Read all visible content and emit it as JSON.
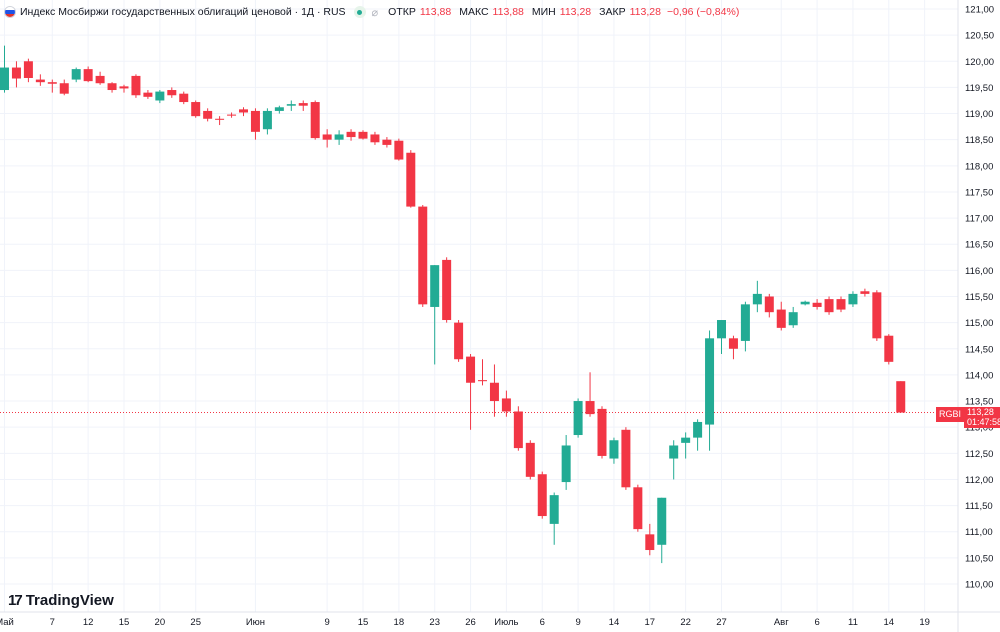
{
  "legend": {
    "title": "Индекс Мосбиржи государственных облигаций ценовой · 1Д · RUS",
    "open_label": "ОТКР",
    "open_value": "113,88",
    "high_label": "МАКС",
    "high_value": "113,88",
    "low_label": "МИН",
    "low_value": "113,28",
    "close_label": "ЗАКР",
    "close_value": "113,28",
    "change": "−0,96 (−0,84%)"
  },
  "logo": {
    "text": "TradingView"
  },
  "price_tag": {
    "symbol": "RGBI",
    "price": "113,28",
    "countdown": "01:47:58"
  },
  "colors": {
    "up": "#22ab94",
    "down": "#f23645",
    "grid": "#f0f3fa",
    "text": "#131722"
  },
  "chart_data": {
    "type": "candlestick",
    "ylim": [
      109.8,
      121.1
    ],
    "y_ticks": [
      "110,00",
      "110,50",
      "111,00",
      "111,50",
      "112,00",
      "112,50",
      "113,00",
      "113,50",
      "114,00",
      "114,50",
      "115,00",
      "115,50",
      "116,00",
      "116,50",
      "117,00",
      "117,50",
      "118,00",
      "118,50",
      "119,00",
      "119,50",
      "120,00",
      "120,50",
      "121,00"
    ],
    "x_ticks": [
      {
        "label": "Май",
        "i": 0
      },
      {
        "label": "7",
        "i": 4
      },
      {
        "label": "12",
        "i": 7
      },
      {
        "label": "15",
        "i": 10
      },
      {
        "label": "20",
        "i": 13
      },
      {
        "label": "25",
        "i": 16
      },
      {
        "label": "Июн",
        "i": 21
      },
      {
        "label": "9",
        "i": 27
      },
      {
        "label": "15",
        "i": 30
      },
      {
        "label": "18",
        "i": 33
      },
      {
        "label": "23",
        "i": 36
      },
      {
        "label": "26",
        "i": 39
      },
      {
        "label": "Июль",
        "i": 42
      },
      {
        "label": "6",
        "i": 45
      },
      {
        "label": "9",
        "i": 48
      },
      {
        "label": "14",
        "i": 51
      },
      {
        "label": "17",
        "i": 54
      },
      {
        "label": "22",
        "i": 57
      },
      {
        "label": "27",
        "i": 60
      },
      {
        "label": "Авг",
        "i": 65
      },
      {
        "label": "6",
        "i": 68
      },
      {
        "label": "11",
        "i": 71
      },
      {
        "label": "14",
        "i": 74
      },
      {
        "label": "19",
        "i": 77
      }
    ],
    "last_price": 113.28,
    "candles": [
      {
        "o": 119.45,
        "h": 120.3,
        "l": 119.4,
        "c": 119.88
      },
      {
        "o": 119.88,
        "h": 120.0,
        "l": 119.5,
        "c": 119.67
      },
      {
        "o": 120.0,
        "h": 120.05,
        "l": 119.6,
        "c": 119.68
      },
      {
        "o": 119.65,
        "h": 119.75,
        "l": 119.53,
        "c": 119.6
      },
      {
        "o": 119.6,
        "h": 119.65,
        "l": 119.4,
        "c": 119.57
      },
      {
        "o": 119.58,
        "h": 119.65,
        "l": 119.35,
        "c": 119.38
      },
      {
        "o": 119.65,
        "h": 119.88,
        "l": 119.6,
        "c": 119.85
      },
      {
        "o": 119.85,
        "h": 119.9,
        "l": 119.6,
        "c": 119.62
      },
      {
        "o": 119.72,
        "h": 119.8,
        "l": 119.55,
        "c": 119.58
      },
      {
        "o": 119.58,
        "h": 119.6,
        "l": 119.4,
        "c": 119.45
      },
      {
        "o": 119.52,
        "h": 119.55,
        "l": 119.4,
        "c": 119.48
      },
      {
        "o": 119.72,
        "h": 119.75,
        "l": 119.3,
        "c": 119.35
      },
      {
        "o": 119.4,
        "h": 119.45,
        "l": 119.28,
        "c": 119.32
      },
      {
        "o": 119.25,
        "h": 119.45,
        "l": 119.2,
        "c": 119.42
      },
      {
        "o": 119.45,
        "h": 119.5,
        "l": 119.3,
        "c": 119.35
      },
      {
        "o": 119.38,
        "h": 119.42,
        "l": 119.18,
        "c": 119.22
      },
      {
        "o": 119.22,
        "h": 119.25,
        "l": 118.92,
        "c": 118.95
      },
      {
        "o": 119.05,
        "h": 119.1,
        "l": 118.85,
        "c": 118.9
      },
      {
        "o": 118.9,
        "h": 118.95,
        "l": 118.78,
        "c": 118.88
      },
      {
        "o": 118.98,
        "h": 119.02,
        "l": 118.92,
        "c": 118.96
      },
      {
        "o": 119.08,
        "h": 119.12,
        "l": 118.95,
        "c": 119.02
      },
      {
        "o": 119.05,
        "h": 119.1,
        "l": 118.5,
        "c": 118.65
      },
      {
        "o": 118.7,
        "h": 119.1,
        "l": 118.6,
        "c": 119.05
      },
      {
        "o": 119.05,
        "h": 119.15,
        "l": 119.0,
        "c": 119.12
      },
      {
        "o": 119.15,
        "h": 119.25,
        "l": 119.05,
        "c": 119.18
      },
      {
        "o": 119.2,
        "h": 119.25,
        "l": 119.05,
        "c": 119.15
      },
      {
        "o": 119.22,
        "h": 119.25,
        "l": 118.5,
        "c": 118.53
      },
      {
        "o": 118.6,
        "h": 118.7,
        "l": 118.35,
        "c": 118.5
      },
      {
        "o": 118.5,
        "h": 118.68,
        "l": 118.4,
        "c": 118.6
      },
      {
        "o": 118.65,
        "h": 118.7,
        "l": 118.48,
        "c": 118.55
      },
      {
        "o": 118.65,
        "h": 118.68,
        "l": 118.5,
        "c": 118.52
      },
      {
        "o": 118.6,
        "h": 118.65,
        "l": 118.4,
        "c": 118.45
      },
      {
        "o": 118.5,
        "h": 118.55,
        "l": 118.35,
        "c": 118.4
      },
      {
        "o": 118.48,
        "h": 118.52,
        "l": 118.1,
        "c": 118.12
      },
      {
        "o": 118.25,
        "h": 118.3,
        "l": 117.2,
        "c": 117.22
      },
      {
        "o": 117.22,
        "h": 117.25,
        "l": 115.3,
        "c": 115.35
      },
      {
        "o": 115.3,
        "h": 116.1,
        "l": 114.2,
        "c": 116.1
      },
      {
        "o": 116.2,
        "h": 116.25,
        "l": 115.0,
        "c": 115.05
      },
      {
        "o": 115.0,
        "h": 115.05,
        "l": 114.25,
        "c": 114.3
      },
      {
        "o": 114.35,
        "h": 114.4,
        "l": 112.95,
        "c": 113.85
      },
      {
        "o": 113.9,
        "h": 114.3,
        "l": 113.8,
        "c": 113.88
      },
      {
        "o": 113.85,
        "h": 114.2,
        "l": 113.2,
        "c": 113.5
      },
      {
        "o": 113.55,
        "h": 113.7,
        "l": 113.2,
        "c": 113.3
      },
      {
        "o": 113.3,
        "h": 113.4,
        "l": 112.55,
        "c": 112.6
      },
      {
        "o": 112.7,
        "h": 112.75,
        "l": 112.0,
        "c": 112.05
      },
      {
        "o": 112.1,
        "h": 112.15,
        "l": 111.25,
        "c": 111.3
      },
      {
        "o": 111.15,
        "h": 111.75,
        "l": 110.75,
        "c": 111.7
      },
      {
        "o": 111.95,
        "h": 112.85,
        "l": 111.8,
        "c": 112.65
      },
      {
        "o": 112.85,
        "h": 113.55,
        "l": 112.8,
        "c": 113.5
      },
      {
        "o": 113.5,
        "h": 114.05,
        "l": 113.2,
        "c": 113.25
      },
      {
        "o": 113.35,
        "h": 113.4,
        "l": 112.4,
        "c": 112.45
      },
      {
        "o": 112.4,
        "h": 112.8,
        "l": 112.3,
        "c": 112.75
      },
      {
        "o": 112.95,
        "h": 113.0,
        "l": 111.8,
        "c": 111.85
      },
      {
        "o": 111.85,
        "h": 111.9,
        "l": 111.0,
        "c": 111.05
      },
      {
        "o": 110.95,
        "h": 111.15,
        "l": 110.55,
        "c": 110.65
      },
      {
        "o": 110.75,
        "h": 111.65,
        "l": 110.4,
        "c": 111.65
      },
      {
        "o": 112.4,
        "h": 112.75,
        "l": 112.0,
        "c": 112.65
      },
      {
        "o": 112.7,
        "h": 112.9,
        "l": 112.4,
        "c": 112.8
      },
      {
        "o": 112.8,
        "h": 113.15,
        "l": 112.55,
        "c": 113.1
      },
      {
        "o": 113.05,
        "h": 114.85,
        "l": 112.55,
        "c": 114.7
      },
      {
        "o": 114.7,
        "h": 115.05,
        "l": 114.4,
        "c": 115.05
      },
      {
        "o": 114.7,
        "h": 114.75,
        "l": 114.3,
        "c": 114.5
      },
      {
        "o": 114.65,
        "h": 115.4,
        "l": 114.45,
        "c": 115.35
      },
      {
        "o": 115.35,
        "h": 115.8,
        "l": 115.2,
        "c": 115.55
      },
      {
        "o": 115.5,
        "h": 115.55,
        "l": 115.1,
        "c": 115.2
      },
      {
        "o": 115.25,
        "h": 115.4,
        "l": 114.85,
        "c": 114.9
      },
      {
        "o": 114.95,
        "h": 115.3,
        "l": 114.9,
        "c": 115.2
      },
      {
        "o": 115.35,
        "h": 115.42,
        "l": 115.33,
        "c": 115.4
      },
      {
        "o": 115.38,
        "h": 115.45,
        "l": 115.25,
        "c": 115.3
      },
      {
        "o": 115.45,
        "h": 115.5,
        "l": 115.15,
        "c": 115.2
      },
      {
        "o": 115.45,
        "h": 115.5,
        "l": 115.2,
        "c": 115.25
      },
      {
        "o": 115.35,
        "h": 115.6,
        "l": 115.3,
        "c": 115.55
      },
      {
        "o": 115.6,
        "h": 115.65,
        "l": 115.5,
        "c": 115.55
      },
      {
        "o": 115.58,
        "h": 115.62,
        "l": 114.65,
        "c": 114.7
      },
      {
        "o": 114.75,
        "h": 114.78,
        "l": 114.2,
        "c": 114.25
      },
      {
        "o": 113.88,
        "h": 113.88,
        "l": 113.28,
        "c": 113.28
      }
    ]
  }
}
